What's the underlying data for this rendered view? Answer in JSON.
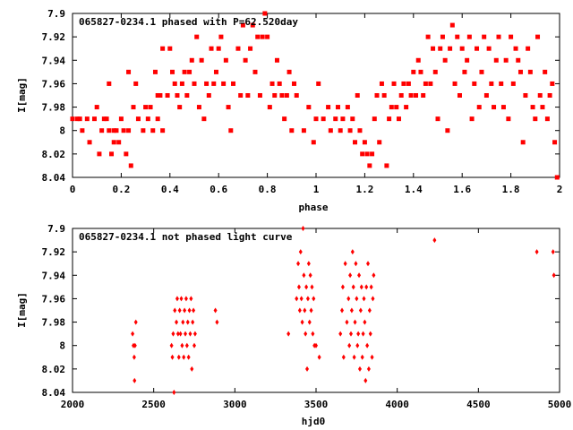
{
  "colors": {
    "points": "#ff0000",
    "axes": "#000000",
    "background": "#ffffff"
  },
  "chart_data": [
    {
      "type": "scatter",
      "title": "065827-0234.1 phased with P=62.520day",
      "xlabel": "phase",
      "ylabel": "I[mag]",
      "xlim": [
        0,
        2
      ],
      "ylim": [
        8.04,
        7.9
      ],
      "y_inverted": true,
      "grid": false,
      "x_ticks": [
        "0",
        "0.2",
        "0.4",
        "0.6",
        "0.8",
        "1",
        "1.2",
        "1.4",
        "1.6",
        "1.8",
        "2"
      ],
      "y_ticks": [
        "7.9",
        "7.92",
        "7.94",
        "7.96",
        "7.98",
        "8",
        "8.02",
        "8.04"
      ],
      "marker": "filled-square",
      "points": [
        [
          0.0,
          7.99
        ],
        [
          0.02,
          7.99
        ],
        [
          0.03,
          7.99
        ],
        [
          0.04,
          8.0
        ],
        [
          0.06,
          7.99
        ],
        [
          0.07,
          8.01
        ],
        [
          0.09,
          7.99
        ],
        [
          0.1,
          7.98
        ],
        [
          0.11,
          8.02
        ],
        [
          0.12,
          8.0
        ],
        [
          0.13,
          7.99
        ],
        [
          0.14,
          7.99
        ],
        [
          0.15,
          8.0
        ],
        [
          0.15,
          7.96
        ],
        [
          0.16,
          8.02
        ],
        [
          0.17,
          8.0
        ],
        [
          0.17,
          8.01
        ],
        [
          0.18,
          8.0
        ],
        [
          0.19,
          8.01
        ],
        [
          0.2,
          7.99
        ],
        [
          0.21,
          8.0
        ],
        [
          0.22,
          8.02
        ],
        [
          0.23,
          7.95
        ],
        [
          0.23,
          8.0
        ],
        [
          0.24,
          8.03
        ],
        [
          0.25,
          7.98
        ],
        [
          0.26,
          7.96
        ],
        [
          0.27,
          7.99
        ],
        [
          0.29,
          8.0
        ],
        [
          0.3,
          7.98
        ],
        [
          0.31,
          7.99
        ],
        [
          0.32,
          7.98
        ],
        [
          0.33,
          8.0
        ],
        [
          0.34,
          7.95
        ],
        [
          0.35,
          7.97
        ],
        [
          0.35,
          7.99
        ],
        [
          0.36,
          7.97
        ],
        [
          0.37,
          8.0
        ],
        [
          0.37,
          7.93
        ],
        [
          0.39,
          7.97
        ],
        [
          0.4,
          7.93
        ],
        [
          0.41,
          7.95
        ],
        [
          0.42,
          7.96
        ],
        [
          0.43,
          7.97
        ],
        [
          0.44,
          7.98
        ],
        [
          0.45,
          7.96
        ],
        [
          0.46,
          7.95
        ],
        [
          0.47,
          7.97
        ],
        [
          0.48,
          7.95
        ],
        [
          0.49,
          7.94
        ],
        [
          0.5,
          7.96
        ],
        [
          0.51,
          7.92
        ],
        [
          0.52,
          7.98
        ],
        [
          0.53,
          7.94
        ],
        [
          0.54,
          7.99
        ],
        [
          0.55,
          7.96
        ],
        [
          0.56,
          7.97
        ],
        [
          0.57,
          7.93
        ],
        [
          0.58,
          7.96
        ],
        [
          0.59,
          7.95
        ],
        [
          0.6,
          7.93
        ],
        [
          0.61,
          7.92
        ],
        [
          0.62,
          7.96
        ],
        [
          0.63,
          7.94
        ],
        [
          0.64,
          7.98
        ],
        [
          0.65,
          8.0
        ],
        [
          0.66,
          7.96
        ],
        [
          0.68,
          7.93
        ],
        [
          0.69,
          7.97
        ],
        [
          0.7,
          7.91
        ],
        [
          0.71,
          7.94
        ],
        [
          0.72,
          7.97
        ],
        [
          0.73,
          7.93
        ],
        [
          0.74,
          7.91
        ],
        [
          0.75,
          7.95
        ],
        [
          0.76,
          7.92
        ],
        [
          0.77,
          7.97
        ],
        [
          0.78,
          7.92
        ],
        [
          0.79,
          7.9
        ],
        [
          0.8,
          7.92
        ],
        [
          0.81,
          7.98
        ],
        [
          0.82,
          7.96
        ],
        [
          0.83,
          7.97
        ],
        [
          0.84,
          7.94
        ],
        [
          0.85,
          7.96
        ],
        [
          0.86,
          7.97
        ],
        [
          0.87,
          7.99
        ],
        [
          0.88,
          7.97
        ],
        [
          0.89,
          7.95
        ],
        [
          0.9,
          8.0
        ],
        [
          0.91,
          7.96
        ],
        [
          0.92,
          7.97
        ],
        [
          0.95,
          8.0
        ],
        [
          0.97,
          7.98
        ],
        [
          0.99,
          8.01
        ],
        [
          1.0,
          7.99
        ],
        [
          1.01,
          7.96
        ],
        [
          1.03,
          7.99
        ],
        [
          1.05,
          7.98
        ],
        [
          1.06,
          8.0
        ],
        [
          1.08,
          7.99
        ],
        [
          1.09,
          7.98
        ],
        [
          1.1,
          8.0
        ],
        [
          1.11,
          7.99
        ],
        [
          1.13,
          7.98
        ],
        [
          1.14,
          8.0
        ],
        [
          1.15,
          7.99
        ],
        [
          1.16,
          8.01
        ],
        [
          1.17,
          7.97
        ],
        [
          1.18,
          8.0
        ],
        [
          1.19,
          8.02
        ],
        [
          1.2,
          8.01
        ],
        [
          1.21,
          8.02
        ],
        [
          1.22,
          8.03
        ],
        [
          1.23,
          8.02
        ],
        [
          1.24,
          7.99
        ],
        [
          1.25,
          7.97
        ],
        [
          1.26,
          8.01
        ],
        [
          1.27,
          7.96
        ],
        [
          1.28,
          7.97
        ],
        [
          1.29,
          8.03
        ],
        [
          1.3,
          7.99
        ],
        [
          1.31,
          7.98
        ],
        [
          1.32,
          7.96
        ],
        [
          1.33,
          7.98
        ],
        [
          1.34,
          7.99
        ],
        [
          1.35,
          7.97
        ],
        [
          1.36,
          7.96
        ],
        [
          1.37,
          7.98
        ],
        [
          1.38,
          7.96
        ],
        [
          1.39,
          7.97
        ],
        [
          1.4,
          7.95
        ],
        [
          1.41,
          7.97
        ],
        [
          1.42,
          7.94
        ],
        [
          1.43,
          7.95
        ],
        [
          1.44,
          7.97
        ],
        [
          1.45,
          7.96
        ],
        [
          1.46,
          7.92
        ],
        [
          1.47,
          7.96
        ],
        [
          1.48,
          7.93
        ],
        [
          1.49,
          7.95
        ],
        [
          1.5,
          7.99
        ],
        [
          1.51,
          7.93
        ],
        [
          1.52,
          7.92
        ],
        [
          1.53,
          7.94
        ],
        [
          1.54,
          8.0
        ],
        [
          1.55,
          7.93
        ],
        [
          1.56,
          7.91
        ],
        [
          1.57,
          7.96
        ],
        [
          1.58,
          7.92
        ],
        [
          1.59,
          7.97
        ],
        [
          1.6,
          7.93
        ],
        [
          1.61,
          7.95
        ],
        [
          1.62,
          7.94
        ],
        [
          1.63,
          7.92
        ],
        [
          1.64,
          7.99
        ],
        [
          1.65,
          7.96
        ],
        [
          1.66,
          7.93
        ],
        [
          1.67,
          7.98
        ],
        [
          1.68,
          7.95
        ],
        [
          1.69,
          7.92
        ],
        [
          1.7,
          7.97
        ],
        [
          1.71,
          7.93
        ],
        [
          1.72,
          7.96
        ],
        [
          1.73,
          7.98
        ],
        [
          1.74,
          7.94
        ],
        [
          1.75,
          7.92
        ],
        [
          1.76,
          7.96
        ],
        [
          1.77,
          7.98
        ],
        [
          1.78,
          7.94
        ],
        [
          1.79,
          7.99
        ],
        [
          1.8,
          7.92
        ],
        [
          1.81,
          7.96
        ],
        [
          1.82,
          7.93
        ],
        [
          1.83,
          7.94
        ],
        [
          1.84,
          7.95
        ],
        [
          1.85,
          8.01
        ],
        [
          1.86,
          7.97
        ],
        [
          1.87,
          7.93
        ],
        [
          1.88,
          7.95
        ],
        [
          1.89,
          7.98
        ],
        [
          1.9,
          7.99
        ],
        [
          1.91,
          7.92
        ],
        [
          1.92,
          7.97
        ],
        [
          1.93,
          7.98
        ],
        [
          1.94,
          7.95
        ],
        [
          1.95,
          7.99
        ],
        [
          1.96,
          7.97
        ],
        [
          1.97,
          7.96
        ],
        [
          1.98,
          8.01
        ],
        [
          1.99,
          8.04
        ]
      ]
    },
    {
      "type": "scatter",
      "title": "065827-0234.1 not phased light curve",
      "xlabel": "hjd0",
      "ylabel": "I[mag]",
      "xlim": [
        2000,
        5000
      ],
      "ylim": [
        8.04,
        7.9
      ],
      "y_inverted": true,
      "grid": false,
      "x_ticks": [
        "2000",
        "2500",
        "3000",
        "3500",
        "4000",
        "4500",
        "5000"
      ],
      "y_ticks": [
        "7.9",
        "7.92",
        "7.94",
        "7.96",
        "7.98",
        "8",
        "8.02",
        "8.04"
      ],
      "marker": "filled-diamond",
      "points": [
        [
          2370,
          7.99
        ],
        [
          2375,
          8.0
        ],
        [
          2380,
          8.01
        ],
        [
          2382,
          8.03
        ],
        [
          2385,
          8.0
        ],
        [
          2390,
          7.98
        ],
        [
          2610,
          8.0
        ],
        [
          2615,
          8.01
        ],
        [
          2620,
          7.99
        ],
        [
          2625,
          8.04
        ],
        [
          2630,
          7.97
        ],
        [
          2640,
          7.98
        ],
        [
          2645,
          7.96
        ],
        [
          2650,
          7.99
        ],
        [
          2655,
          8.01
        ],
        [
          2660,
          7.97
        ],
        [
          2665,
          7.99
        ],
        [
          2670,
          7.96
        ],
        [
          2675,
          8.0
        ],
        [
          2680,
          7.98
        ],
        [
          2685,
          8.01
        ],
        [
          2690,
          7.97
        ],
        [
          2695,
          7.99
        ],
        [
          2700,
          7.96
        ],
        [
          2705,
          8.0
        ],
        [
          2710,
          7.98
        ],
        [
          2715,
          8.01
        ],
        [
          2720,
          7.97
        ],
        [
          2725,
          7.99
        ],
        [
          2730,
          7.96
        ],
        [
          2735,
          8.02
        ],
        [
          2740,
          7.98
        ],
        [
          2745,
          7.97
        ],
        [
          2750,
          8.0
        ],
        [
          2755,
          7.99
        ],
        [
          2880,
          7.97
        ],
        [
          2890,
          7.98
        ],
        [
          3330,
          7.99
        ],
        [
          3380,
          7.96
        ],
        [
          3390,
          7.93
        ],
        [
          3395,
          7.95
        ],
        [
          3400,
          7.97
        ],
        [
          3405,
          7.92
        ],
        [
          3410,
          7.96
        ],
        [
          3415,
          7.98
        ],
        [
          3420,
          7.9
        ],
        [
          3425,
          7.94
        ],
        [
          3430,
          7.97
        ],
        [
          3435,
          7.99
        ],
        [
          3440,
          7.95
        ],
        [
          3445,
          8.02
        ],
        [
          3450,
          7.96
        ],
        [
          3455,
          7.93
        ],
        [
          3460,
          7.98
        ],
        [
          3465,
          7.94
        ],
        [
          3470,
          7.97
        ],
        [
          3475,
          7.95
        ],
        [
          3480,
          7.99
        ],
        [
          3485,
          7.96
        ],
        [
          3490,
          8.0
        ],
        [
          3500,
          8.0
        ],
        [
          3520,
          8.01
        ],
        [
          3650,
          7.99
        ],
        [
          3660,
          7.97
        ],
        [
          3665,
          7.95
        ],
        [
          3670,
          8.01
        ],
        [
          3680,
          7.93
        ],
        [
          3690,
          7.98
        ],
        [
          3700,
          7.96
        ],
        [
          3705,
          8.0
        ],
        [
          3710,
          7.94
        ],
        [
          3715,
          7.99
        ],
        [
          3720,
          7.97
        ],
        [
          3725,
          7.92
        ],
        [
          3730,
          7.95
        ],
        [
          3735,
          8.01
        ],
        [
          3740,
          7.98
        ],
        [
          3745,
          7.93
        ],
        [
          3750,
          7.96
        ],
        [
          3755,
          8.0
        ],
        [
          3760,
          7.99
        ],
        [
          3765,
          7.94
        ],
        [
          3770,
          8.02
        ],
        [
          3775,
          7.97
        ],
        [
          3780,
          7.95
        ],
        [
          3785,
          8.01
        ],
        [
          3790,
          7.99
        ],
        [
          3795,
          7.96
        ],
        [
          3800,
          7.98
        ],
        [
          3805,
          8.03
        ],
        [
          3810,
          7.95
        ],
        [
          3815,
          8.0
        ],
        [
          3820,
          7.93
        ],
        [
          3825,
          8.02
        ],
        [
          3830,
          7.97
        ],
        [
          3835,
          7.99
        ],
        [
          3840,
          7.95
        ],
        [
          3845,
          8.01
        ],
        [
          3850,
          7.96
        ],
        [
          3855,
          7.94
        ],
        [
          4230,
          7.91
        ],
        [
          4860,
          7.92
        ],
        [
          4960,
          7.92
        ],
        [
          4965,
          7.94
        ]
      ]
    }
  ]
}
